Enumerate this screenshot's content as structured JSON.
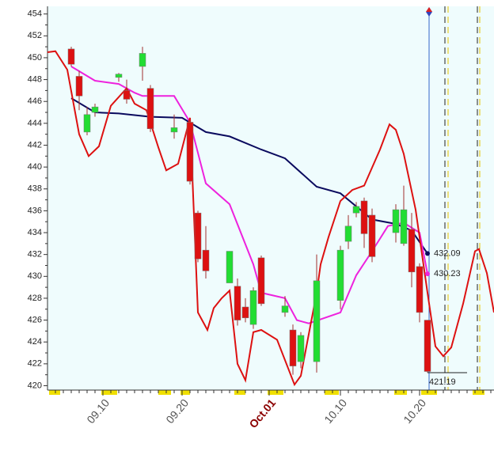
{
  "chart_data": {
    "type": "candlestick",
    "xlim": [
      0,
      56.4
    ],
    "ylim": [
      419.6,
      454.7
    ],
    "yticks": [
      420,
      422,
      424,
      426,
      428,
      430,
      432,
      434,
      436,
      438,
      440,
      442,
      444,
      446,
      448,
      450,
      452,
      454
    ],
    "xticks": [
      {
        "value": 7,
        "label": "09.10"
      },
      {
        "value": 17,
        "label": "09.20"
      },
      {
        "value": 28,
        "label": "Oct.01"
      },
      {
        "value": 37,
        "label": "10.10"
      },
      {
        "value": 47,
        "label": "10.20"
      }
    ],
    "up_color": "#22dd33",
    "down_color": "#dd1111",
    "candles": {
      "x": [
        3,
        4,
        5,
        6,
        9,
        10,
        12,
        13,
        16,
        18,
        19,
        20,
        23,
        24,
        25,
        26,
        27,
        30,
        31,
        32,
        34,
        37,
        38,
        39,
        40,
        41,
        44,
        45,
        46,
        47,
        48
      ],
      "open": [
        450.8,
        448.3,
        443.2,
        445.0,
        448.2,
        447.0,
        449.2,
        447.2,
        443.2,
        444.1,
        435.8,
        432.4,
        429.4,
        429.1,
        427.2,
        425.6,
        431.7,
        426.7,
        425.1,
        422.2,
        422.2,
        427.8,
        433.2,
        435.8,
        436.9,
        435.6,
        434.0,
        433.0,
        434.3,
        430.9,
        426.0
      ],
      "high": [
        451.0,
        448.8,
        445.5,
        445.8,
        448.6,
        448.0,
        451.0,
        447.5,
        444.8,
        444.3,
        436.0,
        434.6,
        432.3,
        429.8,
        428.0,
        429.0,
        431.9,
        428.2,
        425.6,
        424.9,
        432.0,
        432.8,
        435.6,
        436.8,
        437.2,
        436.2,
        436.6,
        438.3,
        435.8,
        431.2,
        426.0
      ],
      "low": [
        449.2,
        445.2,
        442.9,
        444.6,
        447.8,
        445.8,
        447.9,
        443.2,
        442.6,
        438.4,
        431.3,
        429.8,
        429.4,
        425.5,
        425.8,
        425.2,
        427.3,
        426.3,
        421.0,
        421.6,
        421.2,
        427.0,
        432.5,
        435.4,
        432.6,
        431.3,
        433.1,
        432.8,
        429.0,
        425.8,
        421.19
      ],
      "close": [
        449.4,
        446.5,
        444.8,
        445.5,
        448.5,
        446.2,
        450.4,
        443.5,
        443.6,
        438.7,
        431.6,
        430.5,
        432.3,
        426.0,
        426.2,
        428.7,
        427.5,
        427.3,
        421.8,
        424.6,
        429.6,
        432.4,
        434.6,
        436.4,
        433.9,
        431.8,
        436.1,
        436.1,
        430.4,
        426.7,
        421.3
      ]
    },
    "series": [
      {
        "color": "#0a0a5e",
        "x": [
          3,
          6,
          9,
          13,
          17,
          20,
          23,
          27,
          30,
          34,
          37,
          41,
          44,
          46,
          48
        ],
        "values": [
          446.3,
          445.0,
          444.9,
          444.6,
          444.5,
          443.2,
          442.8,
          441.6,
          440.8,
          438.2,
          437.6,
          435.2,
          434.8,
          434.2,
          432.09
        ]
      },
      {
        "color": "#ee22dd",
        "x": [
          3,
          6,
          9,
          11,
          12,
          16,
          18,
          20,
          23,
          26,
          27,
          30,
          31.5,
          33,
          37,
          39,
          41,
          43,
          45,
          47,
          48
        ],
        "values": [
          449.2,
          447.9,
          447.6,
          446.8,
          446.5,
          446.5,
          444.1,
          438.5,
          436.6,
          431.1,
          428.5,
          428.0,
          426.0,
          425.7,
          426.7,
          430.1,
          432.3,
          434.6,
          434.9,
          434.0,
          430.23
        ]
      },
      {
        "color": "#dd1111",
        "x": [
          0,
          1,
          2.5,
          4,
          5.2,
          6.5,
          8,
          10,
          11,
          12.5,
          14,
          15,
          16.5,
          18,
          19,
          20.2,
          21,
          22,
          23,
          24,
          25,
          26,
          27,
          29,
          31.2,
          32,
          34,
          34.5,
          35.5,
          37,
          38.5,
          40,
          42,
          43.2,
          44,
          45,
          46.5,
          48,
          49,
          50,
          51,
          52.5,
          54,
          54.5,
          55.5,
          56.4
        ],
        "values": [
          450.5,
          450.6,
          448.9,
          443.0,
          441.0,
          441.9,
          445.6,
          447.2,
          445.8,
          445.2,
          441.8,
          439.7,
          440.3,
          444.5,
          426.7,
          425.1,
          427.1,
          428.0,
          428.7,
          422.0,
          420.5,
          424.9,
          425.1,
          424.2,
          420.1,
          420.9,
          428.5,
          431.1,
          433.6,
          436.9,
          437.9,
          438.3,
          441.6,
          443.9,
          443.4,
          441.2,
          436.1,
          428.5,
          423.6,
          422.7,
          423.5,
          427.5,
          432.3,
          432.5,
          430.3,
          426.7
        ]
      }
    ]
  }
}
